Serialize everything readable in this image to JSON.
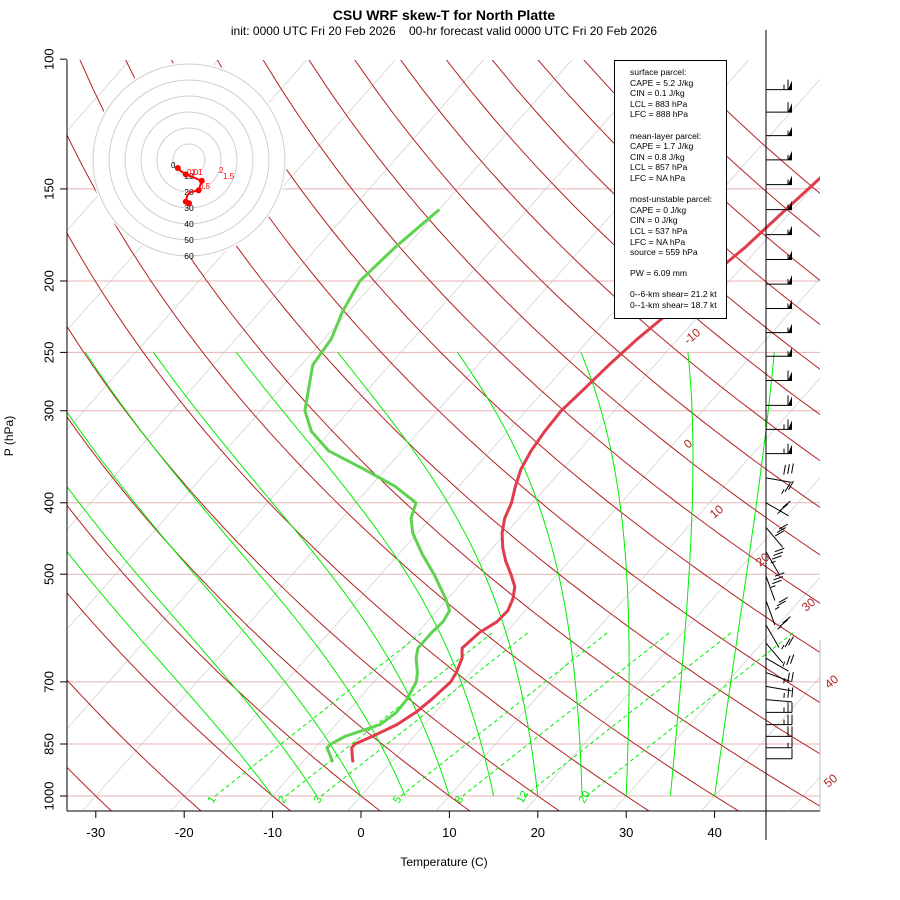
{
  "header": {
    "title": "CSU WRF skew-T for North Platte",
    "init": "init: 0000 UTC Fri 20 Feb 2026",
    "valid": "00-hr forecast valid 0000 UTC Fri 20 Feb 2026"
  },
  "params": {
    "surface": {
      "heading": "surface parcel:",
      "cape": "CAPE = 5.2 J/kg",
      "cin": "CIN = 0.1 J/kg",
      "lcl": "LCL = 883 hPa",
      "lfc": "LFC = 888 hPa"
    },
    "mean_layer": {
      "heading": "mean-layer parcel:",
      "cape": "CAPE = 1.7 J/kg",
      "cin": "CIN = 0.8 J/kg",
      "lcl": "LCL = 857 hPa",
      "lfc": "LFC = NA hPa"
    },
    "most_unstable": {
      "heading": "most-unstable parcel:",
      "cape": "CAPE = 0 J/kg",
      "cin": "CIN = 0 J/kg",
      "lcl": "LCL = 537 hPa",
      "lfc": "LFC = NA hPa",
      "source": "source = 559 hPa"
    },
    "pw": "PW =  6.09 mm",
    "shear6": "0--6-km shear= 21.2 kt",
    "shear1": "0--1-km shear= 18.7 kt"
  },
  "colors": {
    "temperature": "#e03c4b",
    "dewpoint": "#5fd34f",
    "mixing_ratio": "#00ee00",
    "dry_adiabat": "#b22222",
    "hodograph": "#ff0000",
    "isotherm": "#dcdcdc"
  },
  "chart_data": {
    "type": "line",
    "subtype": "skew-T log-P diagram",
    "xlabel": "Temperature (C)",
    "ylabel": "P (hPa)",
    "x_ticks": [
      -30,
      -20,
      -10,
      0,
      10,
      20,
      30,
      40
    ],
    "y_ticks": [
      100,
      150,
      200,
      250,
      300,
      400,
      500,
      700,
      850,
      1000
    ],
    "ylim": [
      1000,
      100
    ],
    "y_scale": "log",
    "series": [
      {
        "id": "temperature",
        "p": [
          900,
          880,
          860,
          850,
          830,
          800,
          770,
          740,
          700,
          680,
          650,
          630,
          600,
          580,
          560,
          540,
          520,
          500,
          480,
          460,
          440,
          420,
          400,
          380,
          360,
          340,
          320,
          300,
          280,
          260,
          240,
          220,
          200,
          180,
          160,
          140,
          120,
          110
        ],
        "values": [
          -4.3,
          -5.1,
          -5.9,
          -5.9,
          -4.7,
          -3.1,
          -2.2,
          -1.7,
          -1.3,
          -1.6,
          -2.4,
          -3.4,
          -3.0,
          -2.1,
          -2.0,
          -2.6,
          -3.6,
          -5.3,
          -7.2,
          -8.9,
          -10.4,
          -11.6,
          -12.4,
          -13.6,
          -14.7,
          -15.4,
          -15.8,
          -16.0,
          -15.6,
          -15.2,
          -14.6,
          -13.6,
          -12.8,
          -11.6,
          -10.8,
          -9.8,
          -8.8,
          -8.2
        ]
      },
      {
        "id": "dewpoint",
        "p": [
          900,
          880,
          860,
          850,
          830,
          800,
          770,
          740,
          700,
          680,
          650,
          630,
          600,
          580,
          560,
          540,
          500,
          470,
          440,
          420,
          400,
          380,
          360,
          340,
          320,
          300,
          280,
          260,
          240,
          220,
          200,
          180,
          160
        ],
        "values": [
          -6.6,
          -7.6,
          -8.7,
          -8.6,
          -7.8,
          -5.0,
          -4.4,
          -4.5,
          -5.2,
          -6.0,
          -7.6,
          -8.4,
          -8.4,
          -8.2,
          -8.6,
          -10.2,
          -14.0,
          -17.3,
          -20.5,
          -22.2,
          -23.2,
          -27.2,
          -32.5,
          -38.3,
          -42.2,
          -45.0,
          -46.8,
          -48.7,
          -49.2,
          -50.7,
          -51.8,
          -51.2,
          -50.0
        ]
      }
    ],
    "isotherm_labels": [
      "-10",
      "0",
      "10",
      "20",
      "30",
      "40",
      "50"
    ],
    "mixing_ratio_labels": [
      "1",
      "2",
      "3",
      "5",
      "8",
      "12",
      "20"
    ],
    "hodograph": {
      "ring_labels": [
        "10",
        "20",
        "30",
        "40",
        "50",
        "60"
      ],
      "point_labels": [
        "0",
        "2",
        "1.5",
        "1",
        "0.5",
        "0.01"
      ],
      "u_kt": [
        -7,
        -5,
        -2,
        3,
        8,
        7,
        6,
        1,
        -1,
        -2,
        0
      ],
      "v_kt": [
        -5,
        -7,
        -9,
        -11,
        -13,
        -16,
        -19,
        -20,
        -22,
        -26,
        -27
      ]
    },
    "wind_barbs": {
      "p": [
        110,
        118,
        127,
        137,
        148,
        160,
        173,
        187,
        202,
        218,
        235,
        253,
        273,
        295,
        318,
        343,
        370,
        400,
        432,
        466,
        503,
        543,
        586,
        620,
        650,
        680,
        710,
        740,
        770,
        800,
        830,
        860,
        890
      ],
      "direction_deg": [
        270,
        270,
        270,
        270,
        270,
        270,
        270,
        270,
        270,
        270,
        270,
        270,
        270,
        270,
        270,
        270,
        280,
        300,
        320,
        330,
        340,
        340,
        330,
        320,
        300,
        290,
        280,
        275,
        270,
        270,
        270,
        270,
        270
      ],
      "speed_kt": [
        65,
        60,
        55,
        55,
        55,
        55,
        55,
        55,
        55,
        55,
        55,
        55,
        60,
        60,
        65,
        65,
        30,
        25,
        25,
        30,
        35,
        35,
        25,
        25,
        25,
        25,
        25,
        25,
        25,
        25,
        20,
        15,
        10
      ]
    }
  }
}
